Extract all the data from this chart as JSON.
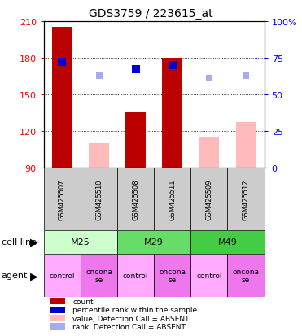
{
  "title": "GDS3759 / 223615_at",
  "samples": [
    "GSM425507",
    "GSM425510",
    "GSM425508",
    "GSM425511",
    "GSM425509",
    "GSM425512"
  ],
  "ylim_left": [
    90,
    210
  ],
  "ylim_right": [
    0,
    100
  ],
  "yticks_left": [
    90,
    120,
    150,
    180,
    210
  ],
  "yticks_right": [
    0,
    25,
    50,
    75,
    100
  ],
  "bar_values": [
    205,
    null,
    135,
    180,
    null,
    null
  ],
  "bar_absent_values": [
    null,
    110,
    null,
    null,
    115,
    127
  ],
  "rank_present": [
    72,
    null,
    67,
    70,
    null,
    null
  ],
  "rank_absent": [
    null,
    63,
    null,
    null,
    61,
    63
  ],
  "bar_color_present": "#bb0000",
  "bar_color_absent": "#ffbbbb",
  "rank_color_present": "#0000cc",
  "rank_color_absent": "#aaaaee",
  "cell_line_groups": [
    {
      "label": "M25",
      "span": [
        0,
        2
      ],
      "color": "#ccffcc"
    },
    {
      "label": "M29",
      "span": [
        2,
        4
      ],
      "color": "#66dd66"
    },
    {
      "label": "M49",
      "span": [
        4,
        6
      ],
      "color": "#44cc44"
    }
  ],
  "agent_colors": [
    "#ffaaff",
    "#ee77ee"
  ],
  "agent_labels": [
    "control",
    "oncona\nse",
    "control",
    "oncona\nse",
    "control",
    "oncona\nse"
  ],
  "legend_items": [
    {
      "label": "count",
      "color": "#bb0000"
    },
    {
      "label": "percentile rank within the sample",
      "color": "#0000cc"
    },
    {
      "label": "value, Detection Call = ABSENT",
      "color": "#ffbbbb"
    },
    {
      "label": "rank, Detection Call = ABSENT",
      "color": "#aaaaee"
    }
  ],
  "cell_line_label": "cell line",
  "agent_label": "agent",
  "bar_width": 0.55,
  "marker_size": 7
}
